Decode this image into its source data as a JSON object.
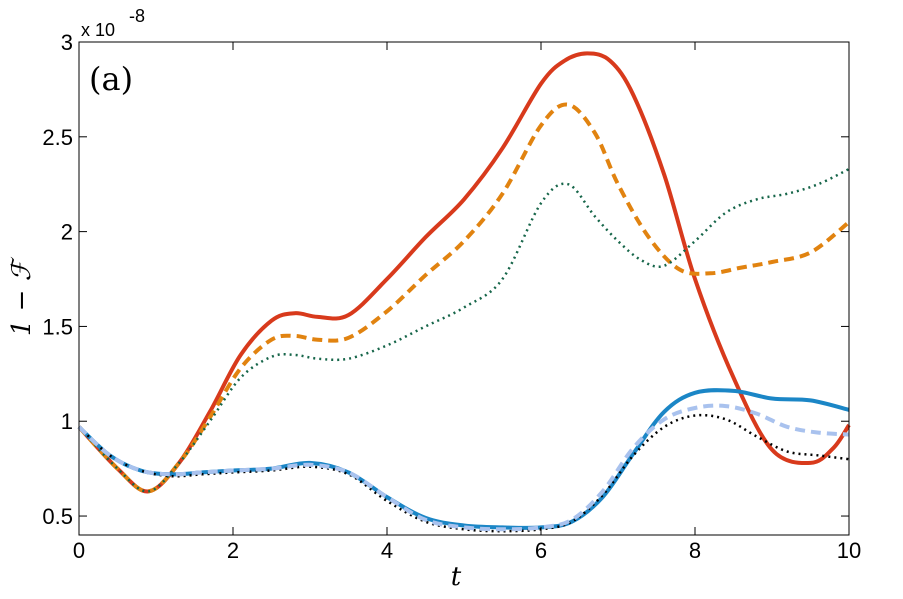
{
  "chart_data": {
    "type": "line",
    "panel_label": "(a)",
    "xlabel": "t",
    "ylabel": "1 − ℱ",
    "y_exponent_label": "x 10",
    "y_exponent_power": "-8",
    "xlim": [
      0,
      10
    ],
    "ylim": [
      0.4,
      3.0
    ],
    "x_ticks": [
      0,
      2,
      4,
      6,
      8,
      10
    ],
    "x_tick_labels": [
      "0",
      "2",
      "4",
      "6",
      "8",
      "10"
    ],
    "y_ticks": [
      0.5,
      1,
      1.5,
      2,
      2.5,
      3
    ],
    "y_tick_labels": [
      "0.5",
      "1",
      "1.5",
      "2",
      "2.5",
      "3"
    ],
    "grid": false,
    "series": [
      {
        "color": "#d83a1c",
        "style": "solid",
        "width": 4,
        "x": [
          0,
          0.5,
          0.9,
          1.3,
          1.7,
          2.1,
          2.5,
          2.8,
          3.1,
          3.5,
          4.0,
          4.5,
          5.0,
          5.5,
          6.0,
          6.3,
          6.6,
          6.9,
          7.2,
          7.6,
          8.0,
          8.5,
          9.0,
          9.5,
          9.8,
          10.0
        ],
        "y": [
          0.97,
          0.75,
          0.63,
          0.78,
          1.05,
          1.35,
          1.53,
          1.57,
          1.55,
          1.56,
          1.75,
          1.97,
          2.17,
          2.44,
          2.78,
          2.9,
          2.94,
          2.9,
          2.72,
          2.3,
          1.75,
          1.23,
          0.85,
          0.78,
          0.86,
          0.98
        ]
      },
      {
        "color": "#e18310",
        "style": "dashed",
        "width": 4,
        "x": [
          0,
          0.5,
          0.9,
          1.3,
          1.7,
          2.1,
          2.5,
          2.8,
          3.1,
          3.5,
          4.0,
          4.5,
          5.0,
          5.5,
          6.0,
          6.35,
          6.7,
          7.0,
          7.4,
          7.8,
          8.2,
          8.6,
          9.0,
          9.5,
          10.0
        ],
        "y": [
          0.97,
          0.75,
          0.63,
          0.78,
          1.02,
          1.28,
          1.43,
          1.45,
          1.43,
          1.44,
          1.58,
          1.77,
          1.95,
          2.2,
          2.56,
          2.67,
          2.52,
          2.25,
          1.97,
          1.8,
          1.78,
          1.81,
          1.84,
          1.89,
          2.05
        ]
      },
      {
        "color": "#17664a",
        "style": "dotted",
        "width": 2.5,
        "x": [
          0,
          0.5,
          0.9,
          1.3,
          1.7,
          2.1,
          2.5,
          2.8,
          3.1,
          3.5,
          4.0,
          4.5,
          5.0,
          5.5,
          6.0,
          6.35,
          6.7,
          7.0,
          7.3,
          7.6,
          8.0,
          8.4,
          8.8,
          9.2,
          9.6,
          10.0
        ],
        "y": [
          0.97,
          0.75,
          0.63,
          0.78,
          1.0,
          1.23,
          1.34,
          1.35,
          1.33,
          1.33,
          1.4,
          1.5,
          1.6,
          1.75,
          2.15,
          2.25,
          2.08,
          1.95,
          1.85,
          1.82,
          1.95,
          2.1,
          2.17,
          2.2,
          2.25,
          2.33
        ]
      },
      {
        "color": "#1b86c6",
        "style": "solid",
        "width": 4,
        "x": [
          0,
          0.4,
          0.8,
          1.2,
          1.6,
          2.0,
          2.5,
          3.0,
          3.5,
          4.0,
          4.5,
          5.0,
          5.5,
          6.0,
          6.4,
          6.8,
          7.2,
          7.6,
          8.0,
          8.5,
          9.0,
          9.5,
          10.0
        ],
        "y": [
          0.97,
          0.82,
          0.74,
          0.72,
          0.73,
          0.74,
          0.75,
          0.78,
          0.73,
          0.6,
          0.49,
          0.45,
          0.44,
          0.44,
          0.47,
          0.6,
          0.83,
          1.05,
          1.15,
          1.16,
          1.12,
          1.11,
          1.06
        ]
      },
      {
        "color": "#000000",
        "style": "dotted",
        "width": 2.5,
        "x": [
          0,
          0.4,
          0.8,
          1.2,
          1.6,
          2.0,
          2.5,
          3.0,
          3.5,
          4.0,
          4.5,
          5.0,
          5.5,
          6.0,
          6.4,
          6.8,
          7.2,
          7.6,
          8.0,
          8.4,
          8.8,
          9.2,
          9.6,
          10.0
        ],
        "y": [
          0.97,
          0.82,
          0.74,
          0.71,
          0.72,
          0.73,
          0.74,
          0.76,
          0.72,
          0.58,
          0.47,
          0.43,
          0.42,
          0.43,
          0.47,
          0.61,
          0.82,
          0.97,
          1.03,
          1.01,
          0.92,
          0.84,
          0.82,
          0.8
        ]
      },
      {
        "color": "#a9c2ee",
        "style": "dashed",
        "width": 4,
        "x": [
          0,
          0.4,
          0.8,
          1.2,
          1.6,
          2.0,
          2.5,
          3.0,
          3.5,
          4.0,
          4.5,
          5.0,
          5.5,
          6.0,
          6.4,
          6.8,
          7.2,
          7.6,
          8.0,
          8.4,
          8.8,
          9.2,
          9.6,
          10.0
        ],
        "y": [
          0.97,
          0.82,
          0.74,
          0.72,
          0.73,
          0.74,
          0.75,
          0.77,
          0.73,
          0.6,
          0.48,
          0.44,
          0.43,
          0.44,
          0.48,
          0.63,
          0.86,
          1.01,
          1.07,
          1.08,
          1.04,
          0.97,
          0.94,
          0.93
        ]
      }
    ]
  }
}
